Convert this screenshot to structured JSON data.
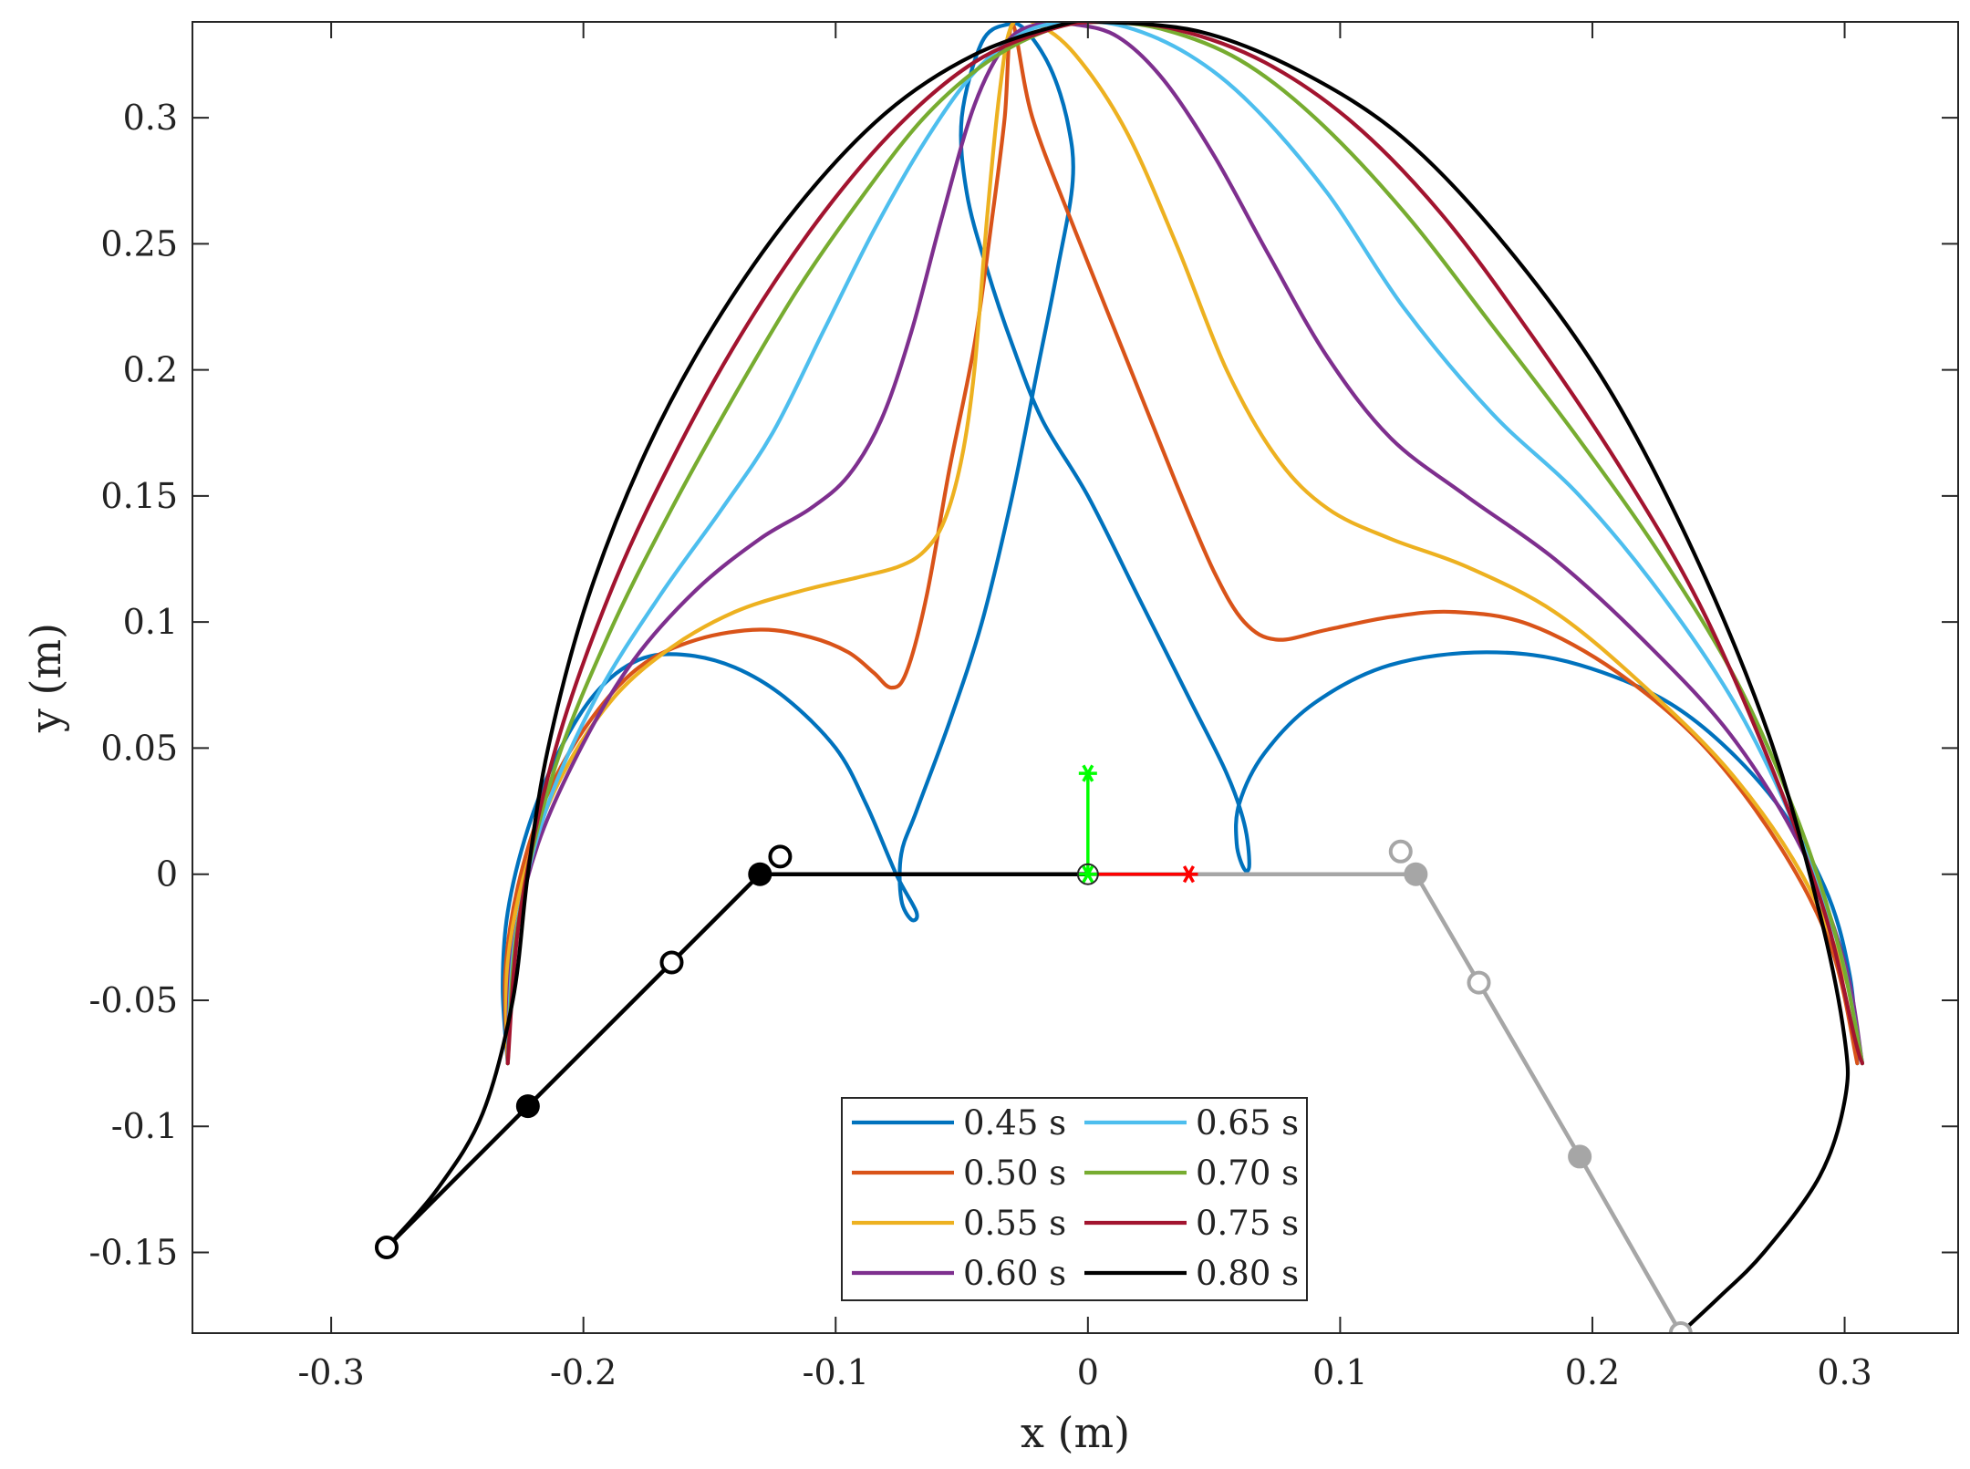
{
  "chart_data": {
    "type": "line",
    "title": "",
    "xlabel": "x (m)",
    "ylabel": "y (m)",
    "xlim": [
      -0.355,
      0.345
    ],
    "ylim": [
      -0.182,
      0.338
    ],
    "xticks": [
      -0.3,
      -0.2,
      -0.1,
      0,
      0.1,
      0.2,
      0.3
    ],
    "xtick_labels": [
      "-0.3",
      "-0.2",
      "-0.1",
      "0",
      "0.1",
      "0.2",
      "0.3"
    ],
    "yticks": [
      -0.15,
      -0.1,
      -0.05,
      0,
      0.05,
      0.1,
      0.15,
      0.2,
      0.25,
      0.3
    ],
    "ytick_labels": [
      "-0.15",
      "-0.1",
      "-0.05",
      "0",
      "0.05",
      "0.1",
      "0.15",
      "0.2",
      "0.25",
      "0.3"
    ],
    "grid": false,
    "legend_position": "bottom-center, two columns",
    "series": [
      {
        "name": "0.45 s",
        "color": "#0072BD",
        "points": [
          [
            -0.23,
            -0.075
          ],
          [
            -0.232,
            -0.045
          ],
          [
            -0.23,
            -0.015
          ],
          [
            -0.222,
            0.018
          ],
          [
            -0.21,
            0.048
          ],
          [
            -0.195,
            0.072
          ],
          [
            -0.178,
            0.085
          ],
          [
            -0.16,
            0.087
          ],
          [
            -0.14,
            0.082
          ],
          [
            -0.12,
            0.07
          ],
          [
            -0.1,
            0.05
          ],
          [
            -0.088,
            0.028
          ],
          [
            -0.076,
            0.0
          ],
          [
            -0.068,
            -0.015
          ],
          [
            -0.07,
            -0.018
          ],
          [
            -0.074,
            -0.01
          ],
          [
            -0.074,
            0.008
          ],
          [
            -0.068,
            0.025
          ],
          [
            -0.055,
            0.06
          ],
          [
            -0.042,
            0.1
          ],
          [
            -0.03,
            0.15
          ],
          [
            -0.02,
            0.2
          ],
          [
            -0.012,
            0.24
          ],
          [
            -0.006,
            0.275
          ],
          [
            -0.008,
            0.298
          ],
          [
            -0.015,
            0.32
          ],
          [
            -0.025,
            0.335
          ],
          [
            -0.032,
            0.337
          ],
          [
            -0.042,
            0.33
          ],
          [
            -0.05,
            0.3
          ],
          [
            -0.048,
            0.27
          ],
          [
            -0.04,
            0.24
          ],
          [
            -0.03,
            0.21
          ],
          [
            -0.018,
            0.18
          ],
          [
            0.0,
            0.15
          ],
          [
            0.02,
            0.11
          ],
          [
            0.04,
            0.07
          ],
          [
            0.055,
            0.04
          ],
          [
            0.062,
            0.02
          ],
          [
            0.064,
            0.004
          ],
          [
            0.062,
            0.002
          ],
          [
            0.059,
            0.012
          ],
          [
            0.06,
            0.028
          ],
          [
            0.07,
            0.048
          ],
          [
            0.09,
            0.068
          ],
          [
            0.12,
            0.083
          ],
          [
            0.158,
            0.088
          ],
          [
            0.195,
            0.083
          ],
          [
            0.235,
            0.065
          ],
          [
            0.27,
            0.032
          ],
          [
            0.292,
            -0.005
          ],
          [
            0.302,
            -0.04
          ],
          [
            0.305,
            -0.075
          ]
        ]
      },
      {
        "name": "0.50 s",
        "color": "#D95319",
        "points": [
          [
            -0.23,
            -0.075
          ],
          [
            -0.231,
            -0.04
          ],
          [
            -0.226,
            -0.005
          ],
          [
            -0.215,
            0.03
          ],
          [
            -0.198,
            0.06
          ],
          [
            -0.178,
            0.082
          ],
          [
            -0.155,
            0.093
          ],
          [
            -0.13,
            0.097
          ],
          [
            -0.11,
            0.094
          ],
          [
            -0.095,
            0.088
          ],
          [
            -0.085,
            0.08
          ],
          [
            -0.078,
            0.074
          ],
          [
            -0.072,
            0.08
          ],
          [
            -0.064,
            0.11
          ],
          [
            -0.055,
            0.16
          ],
          [
            -0.045,
            0.21
          ],
          [
            -0.038,
            0.26
          ],
          [
            -0.033,
            0.3
          ],
          [
            -0.03,
            0.337
          ],
          [
            -0.022,
            0.3
          ],
          [
            -0.005,
            0.255
          ],
          [
            0.015,
            0.205
          ],
          [
            0.035,
            0.155
          ],
          [
            0.05,
            0.12
          ],
          [
            0.062,
            0.1
          ],
          [
            0.075,
            0.093
          ],
          [
            0.095,
            0.097
          ],
          [
            0.12,
            0.102
          ],
          [
            0.145,
            0.104
          ],
          [
            0.175,
            0.099
          ],
          [
            0.21,
            0.08
          ],
          [
            0.245,
            0.05
          ],
          [
            0.275,
            0.01
          ],
          [
            0.295,
            -0.03
          ],
          [
            0.305,
            -0.075
          ]
        ]
      },
      {
        "name": "0.55 s",
        "color": "#EDB120",
        "points": [
          [
            -0.23,
            -0.075
          ],
          [
            -0.23,
            -0.035
          ],
          [
            -0.222,
            0.005
          ],
          [
            -0.208,
            0.04
          ],
          [
            -0.188,
            0.07
          ],
          [
            -0.165,
            0.09
          ],
          [
            -0.14,
            0.104
          ],
          [
            -0.115,
            0.112
          ],
          [
            -0.09,
            0.118
          ],
          [
            -0.075,
            0.122
          ],
          [
            -0.065,
            0.128
          ],
          [
            -0.057,
            0.14
          ],
          [
            -0.05,
            0.165
          ],
          [
            -0.045,
            0.2
          ],
          [
            -0.04,
            0.26
          ],
          [
            -0.035,
            0.31
          ],
          [
            -0.03,
            0.337
          ],
          [
            -0.02,
            0.337
          ],
          [
            -0.005,
            0.325
          ],
          [
            0.015,
            0.295
          ],
          [
            0.035,
            0.25
          ],
          [
            0.055,
            0.2
          ],
          [
            0.075,
            0.165
          ],
          [
            0.095,
            0.145
          ],
          [
            0.12,
            0.133
          ],
          [
            0.15,
            0.122
          ],
          [
            0.185,
            0.104
          ],
          [
            0.22,
            0.075
          ],
          [
            0.255,
            0.04
          ],
          [
            0.283,
            0.0
          ],
          [
            0.3,
            -0.04
          ],
          [
            0.307,
            -0.075
          ]
        ]
      },
      {
        "name": "0.60 s",
        "color": "#7E2F8E",
        "points": [
          [
            -0.23,
            -0.075
          ],
          [
            -0.228,
            -0.03
          ],
          [
            -0.218,
            0.012
          ],
          [
            -0.2,
            0.052
          ],
          [
            -0.18,
            0.085
          ],
          [
            -0.155,
            0.113
          ],
          [
            -0.13,
            0.133
          ],
          [
            -0.11,
            0.145
          ],
          [
            -0.095,
            0.158
          ],
          [
            -0.082,
            0.18
          ],
          [
            -0.07,
            0.215
          ],
          [
            -0.058,
            0.26
          ],
          [
            -0.045,
            0.305
          ],
          [
            -0.032,
            0.33
          ],
          [
            -0.02,
            0.337
          ],
          [
            -0.005,
            0.337
          ],
          [
            0.012,
            0.332
          ],
          [
            0.03,
            0.315
          ],
          [
            0.05,
            0.285
          ],
          [
            0.072,
            0.245
          ],
          [
            0.095,
            0.205
          ],
          [
            0.12,
            0.173
          ],
          [
            0.15,
            0.15
          ],
          [
            0.185,
            0.125
          ],
          [
            0.22,
            0.093
          ],
          [
            0.255,
            0.055
          ],
          [
            0.283,
            0.01
          ],
          [
            0.3,
            -0.035
          ],
          [
            0.307,
            -0.075
          ]
        ]
      },
      {
        "name": "0.65 s",
        "color": "#4DBEEE",
        "points": [
          [
            -0.23,
            -0.075
          ],
          [
            -0.227,
            -0.025
          ],
          [
            -0.215,
            0.025
          ],
          [
            -0.195,
            0.07
          ],
          [
            -0.17,
            0.11
          ],
          [
            -0.145,
            0.145
          ],
          [
            -0.125,
            0.175
          ],
          [
            -0.105,
            0.215
          ],
          [
            -0.085,
            0.255
          ],
          [
            -0.065,
            0.29
          ],
          [
            -0.045,
            0.318
          ],
          [
            -0.025,
            0.334
          ],
          [
            -0.005,
            0.338
          ],
          [
            0.015,
            0.336
          ],
          [
            0.04,
            0.325
          ],
          [
            0.065,
            0.305
          ],
          [
            0.095,
            0.27
          ],
          [
            0.125,
            0.225
          ],
          [
            0.16,
            0.183
          ],
          [
            0.195,
            0.15
          ],
          [
            0.228,
            0.11
          ],
          [
            0.258,
            0.065
          ],
          [
            0.282,
            0.015
          ],
          [
            0.298,
            -0.03
          ],
          [
            0.307,
            -0.075
          ]
        ]
      },
      {
        "name": "0.70 s",
        "color": "#77AC30",
        "points": [
          [
            -0.23,
            -0.075
          ],
          [
            -0.226,
            -0.02
          ],
          [
            -0.212,
            0.04
          ],
          [
            -0.19,
            0.095
          ],
          [
            -0.165,
            0.145
          ],
          [
            -0.14,
            0.19
          ],
          [
            -0.115,
            0.232
          ],
          [
            -0.09,
            0.268
          ],
          [
            -0.065,
            0.3
          ],
          [
            -0.04,
            0.322
          ],
          [
            -0.015,
            0.335
          ],
          [
            0.005,
            0.338
          ],
          [
            0.03,
            0.335
          ],
          [
            0.06,
            0.323
          ],
          [
            0.09,
            0.3
          ],
          [
            0.125,
            0.263
          ],
          [
            0.16,
            0.218
          ],
          [
            0.195,
            0.172
          ],
          [
            0.228,
            0.125
          ],
          [
            0.258,
            0.075
          ],
          [
            0.282,
            0.02
          ],
          [
            0.298,
            -0.03
          ],
          [
            0.307,
            -0.075
          ]
        ]
      },
      {
        "name": "0.75 s",
        "color": "#A2142F",
        "points": [
          [
            -0.23,
            -0.075
          ],
          [
            -0.225,
            -0.015
          ],
          [
            -0.211,
            0.05
          ],
          [
            -0.188,
            0.115
          ],
          [
            -0.162,
            0.17
          ],
          [
            -0.135,
            0.218
          ],
          [
            -0.105,
            0.262
          ],
          [
            -0.075,
            0.297
          ],
          [
            -0.045,
            0.322
          ],
          [
            -0.015,
            0.335
          ],
          [
            0.005,
            0.338
          ],
          [
            0.035,
            0.335
          ],
          [
            0.07,
            0.322
          ],
          [
            0.105,
            0.298
          ],
          [
            0.14,
            0.262
          ],
          [
            0.175,
            0.215
          ],
          [
            0.21,
            0.163
          ],
          [
            0.242,
            0.108
          ],
          [
            0.27,
            0.045
          ],
          [
            0.292,
            -0.015
          ],
          [
            0.304,
            -0.065
          ],
          [
            0.307,
            -0.075
          ]
        ]
      },
      {
        "name": "0.80 s",
        "color": "#000000",
        "points": [
          [
            -0.278,
            -0.148
          ],
          [
            -0.258,
            -0.125
          ],
          [
            -0.24,
            -0.095
          ],
          [
            -0.228,
            -0.05
          ],
          [
            -0.222,
            0.0
          ],
          [
            -0.214,
            0.05
          ],
          [
            -0.198,
            0.11
          ],
          [
            -0.175,
            0.168
          ],
          [
            -0.148,
            0.218
          ],
          [
            -0.115,
            0.265
          ],
          [
            -0.08,
            0.302
          ],
          [
            -0.045,
            0.325
          ],
          [
            -0.01,
            0.337
          ],
          [
            0.005,
            0.338
          ],
          [
            0.045,
            0.334
          ],
          [
            0.085,
            0.318
          ],
          [
            0.125,
            0.292
          ],
          [
            0.165,
            0.25
          ],
          [
            0.205,
            0.195
          ],
          [
            0.24,
            0.128
          ],
          [
            0.27,
            0.055
          ],
          [
            0.29,
            -0.015
          ],
          [
            0.3,
            -0.065
          ],
          [
            0.3,
            -0.09
          ],
          [
            0.29,
            -0.12
          ],
          [
            0.268,
            -0.15
          ],
          [
            0.25,
            -0.168
          ],
          [
            0.235,
            -0.182
          ]
        ]
      }
    ],
    "mechanism": {
      "left_leg": {
        "color": "#000000",
        "points": [
          [
            -0.278,
            -0.148
          ],
          [
            -0.222,
            -0.092
          ],
          [
            -0.165,
            -0.035
          ],
          [
            -0.13,
            0.0
          ],
          [
            0.0,
            0.0
          ]
        ],
        "open_joints": [
          [
            -0.278,
            -0.148
          ],
          [
            -0.165,
            -0.035
          ],
          [
            -0.122,
            0.007
          ]
        ],
        "filled_joints": [
          [
            -0.222,
            -0.092
          ],
          [
            -0.13,
            0.0
          ]
        ]
      },
      "right_leg": {
        "color": "#A6A6A6",
        "points": [
          [
            0.0,
            0.0
          ],
          [
            0.13,
            0.0
          ],
          [
            0.155,
            -0.043
          ],
          [
            0.195,
            -0.112
          ],
          [
            0.235,
            -0.182
          ]
        ],
        "open_joints": [
          [
            0.155,
            -0.043
          ],
          [
            0.235,
            -0.182
          ],
          [
            0.124,
            0.009
          ]
        ],
        "filled_joints": [
          [
            0.13,
            0.0
          ],
          [
            0.195,
            -0.112
          ]
        ]
      },
      "x_axis_marker": {
        "color": "#FF0000",
        "from": [
          0,
          0
        ],
        "to": [
          0.04,
          0
        ]
      },
      "y_axis_marker": {
        "color": "#00FF00",
        "from": [
          0,
          0
        ],
        "to": [
          0,
          0.04
        ]
      }
    }
  }
}
